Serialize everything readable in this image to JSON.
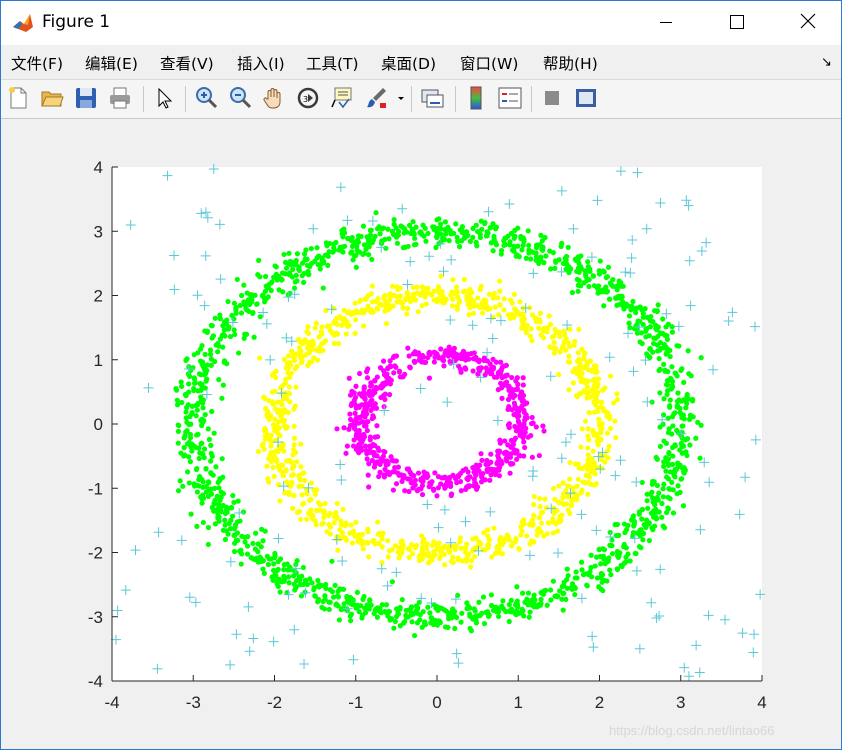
{
  "window": {
    "title": "Figure 1"
  },
  "menu": [
    "文件(F)",
    "编辑(E)",
    "查看(V)",
    "插入(I)",
    "工具(T)",
    "桌面(D)",
    "窗口(W)",
    "帮助(H)"
  ],
  "toolbar": {
    "icons": [
      "new-figure-icon",
      "open-file-icon",
      "save-icon",
      "print-icon",
      "pointer-icon",
      "zoom-in-icon",
      "zoom-out-icon",
      "pan-hand-icon",
      "rotate-3d-icon",
      "data-cursor-icon",
      "brush-icon",
      "brush-dropdown-icon",
      "link-plot-icon",
      "colorbar-icon",
      "legend-icon",
      "hide-plot-tools-icon",
      "show-plot-tools-icon"
    ]
  },
  "colors": {
    "outer_ring": "#00ff00",
    "middle_ring": "#ffff00",
    "inner_ring": "#ff00ff",
    "noise": "#5bc8d8"
  },
  "chart_data": {
    "type": "scatter",
    "title": "",
    "xlabel": "",
    "ylabel": "",
    "xlim": [
      -4,
      4
    ],
    "ylim": [
      -4,
      4
    ],
    "xticks": [
      -4,
      -3,
      -2,
      -1,
      0,
      1,
      2,
      3,
      4
    ],
    "yticks": [
      -4,
      -3,
      -2,
      -1,
      0,
      1,
      2,
      3,
      4
    ],
    "grid": false,
    "series": [
      {
        "marker": "dot",
        "color": "#00ff00",
        "shape": "ring",
        "center": [
          0,
          0
        ],
        "radius_x": 3.0,
        "radius_y": 3.0,
        "spread": 0.12,
        "count": 1500
      },
      {
        "marker": "dot",
        "color": "#ffff00",
        "shape": "ring",
        "center": [
          0,
          0
        ],
        "radius_x": 2.0,
        "radius_y": 2.0,
        "spread": 0.11,
        "count": 1000
      },
      {
        "marker": "dot",
        "color": "#ff00ff",
        "shape": "ring",
        "center": [
          0.05,
          0.05
        ],
        "radius_x": 1.0,
        "radius_y": 1.0,
        "spread": 0.1,
        "count": 600
      },
      {
        "marker": "plus",
        "color": "#5bc8d8",
        "shape": "uniform",
        "range": [
          -4,
          4
        ],
        "count": 180
      }
    ]
  },
  "watermark": "https://blog.csdn.net/lintao66"
}
